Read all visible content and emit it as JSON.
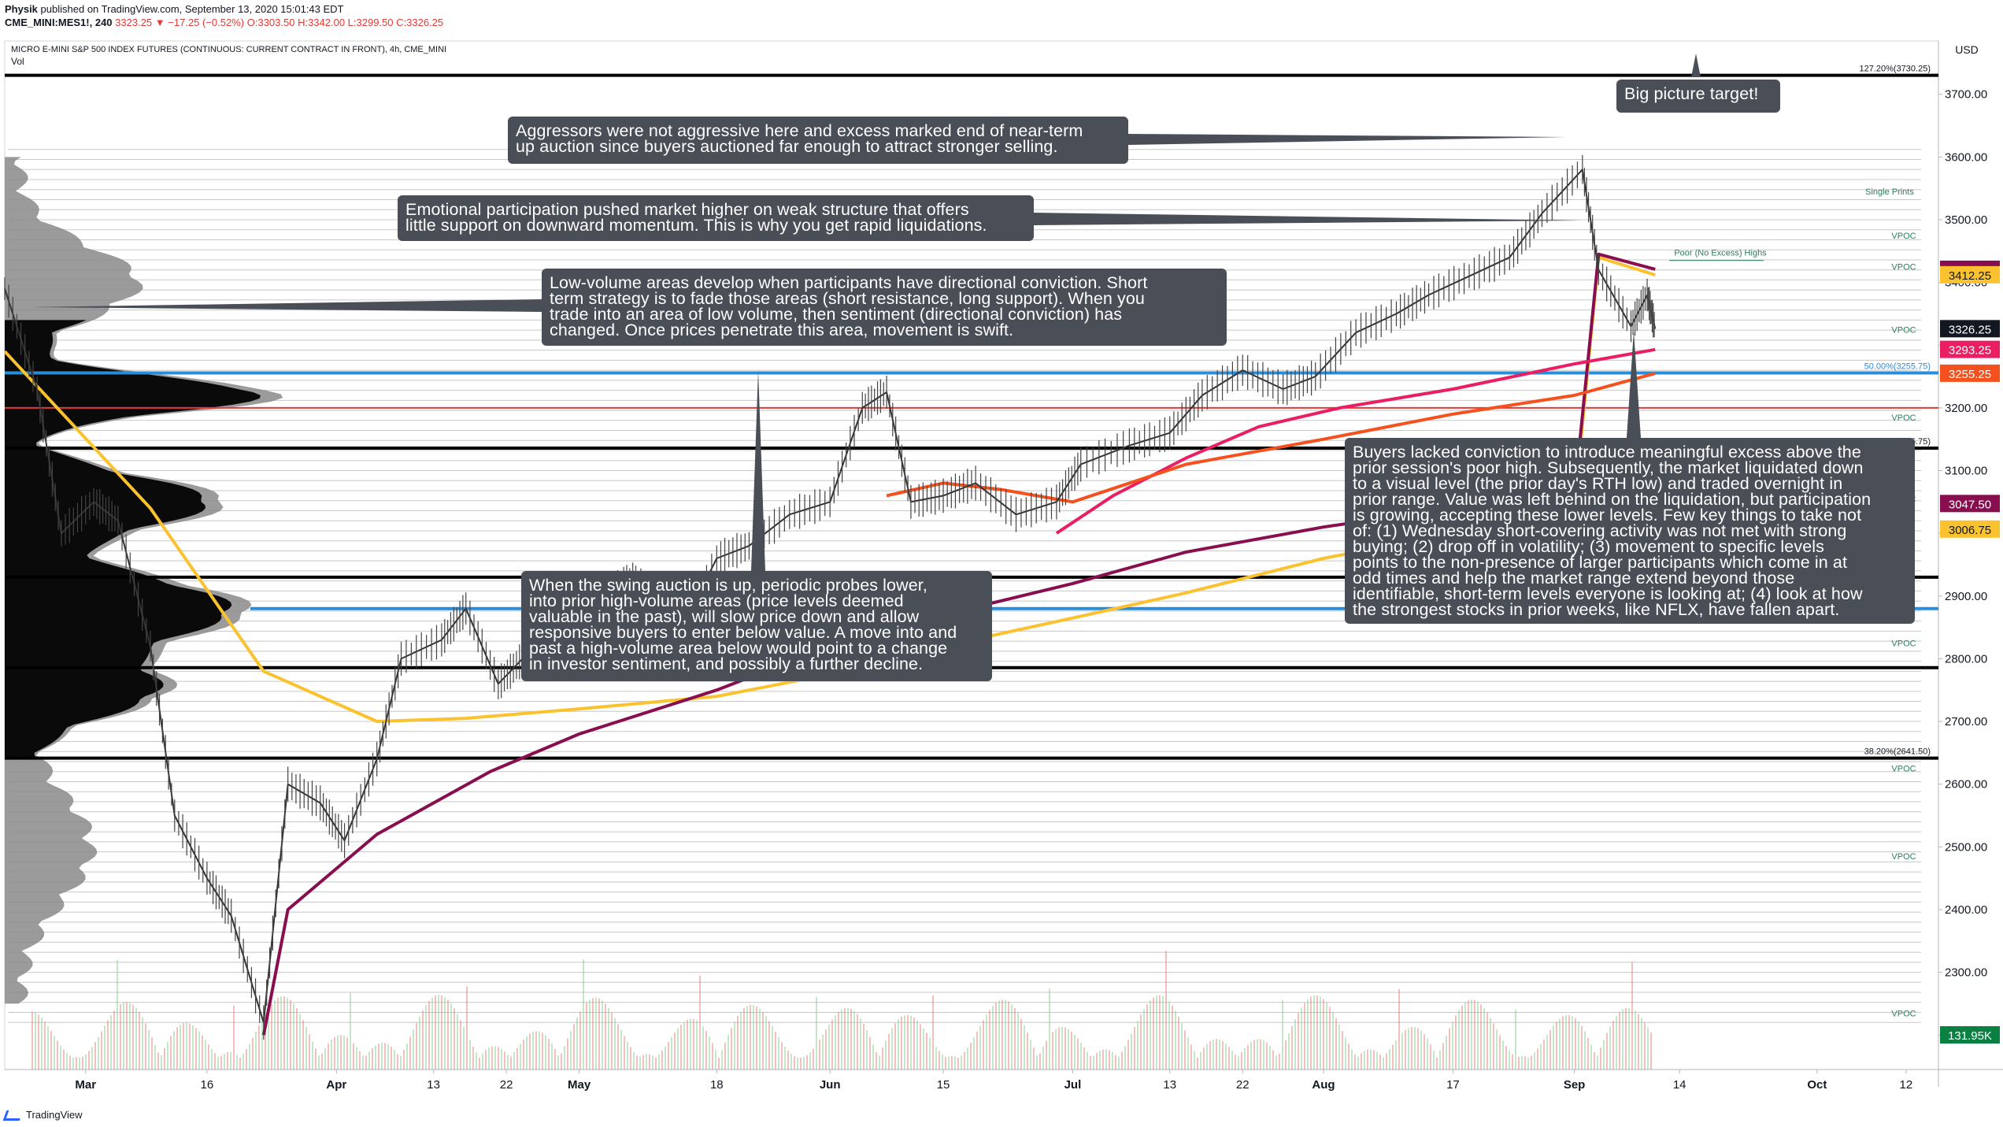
{
  "header": {
    "author": "Physik",
    "published": "published on TradingView.com, September 13, 2020 15:01:43 EDT",
    "symbol": "CME_MINI:MES1!, 240",
    "last": "3323.25",
    "change": "▼ −17.25 (−0.52%)",
    "ohlc": "O:3303.50 H:3342.00 L:3299.50 C:3326.25"
  },
  "chart_title": "MICRO E-MINI S&P 500 INDEX FUTURES (CONTINUOUS: CURRENT CONTRACT IN FRONT), 4h, CME_MINI",
  "vol_label": "Vol",
  "currency": "USD",
  "footer": {
    "brand": "TradingView"
  },
  "annotations": {
    "target": "Big picture target!",
    "aggressors": "Aggressors were not aggressive here and excess marked end of near-term\nup auction since buyers auctioned far enough to attract stronger selling.",
    "emotional": "Emotional participation pushed market higher on weak structure that offers\nlittle support on downward momentum. This is why you get rapid liquidations.",
    "lowvolume": "Low-volume areas develop when participants have directional conviction. Short\nterm strategy is to fade those areas (short resistance, long support). When you\ntrade into an area of low volume, then sentiment (directional conviction) has\nchanged. Once prices penetrate this area, movement is swift.",
    "swing": "When the swing auction is up, periodic probes lower,\ninto prior high-volume areas (price levels deemed\nvaluable in the past), will slow price down and allow\nresponsive buyers to enter below value. A move into and\npast a high-volume area below would point to a change\nin investor sentiment, and possibly a further decline.",
    "buyers": "Buyers lacked conviction to introduce meaningful excess above the\nprior session's poor high. Subsequently, the market liquidated down\nto a visual level (the prior day's RTH low) and traded overnight in\nprior range. Value was left behind on the liquidation, but participation\nis growing, accepting these lower levels. Few key things to take not\nof: (1) Wednesday short-covering activity was not met with strong\nbuying; (2) drop off in volatility; (3) movement to specific levels\npoints to the non-presence of larger participants which come in at\nodd times and help the market range extend beyond those\nidentifiable, short-term levels everyone is looking at; (4) look at how\nthe strongest stocks in prior weeks, like NFLX, have fallen apart."
  },
  "chart_data": {
    "type": "line",
    "yaxis": {
      "ticks": [
        2200,
        2300,
        2400,
        2500,
        2600,
        2700,
        2800,
        2900,
        3000,
        3100,
        3200,
        3300,
        3400,
        3500,
        3600,
        3700
      ],
      "tick_labels": [
        "2200.00",
        "2300.00",
        "2400.00",
        "2500.00",
        "2600.00",
        "2700.00",
        "2800.00",
        "2900.00",
        "3000.00",
        "3100.00",
        "3200.00",
        "3300.00",
        "3400.00",
        "3500.00",
        "3600.00",
        "3700.00"
      ],
      "range": [
        2145,
        3775
      ]
    },
    "xaxis": {
      "tick_labels": [
        "Mar",
        "16",
        "Apr",
        "13",
        "22",
        "May",
        "18",
        "Jun",
        "15",
        "Jul",
        "13",
        "22",
        "Aug",
        "17",
        "Sep",
        "14",
        "Oct",
        "12"
      ],
      "tick_dates": [
        "2020-03-01",
        "2020-03-16",
        "2020-04-01",
        "2020-04-13",
        "2020-04-22",
        "2020-05-01",
        "2020-05-18",
        "2020-06-01",
        "2020-06-15",
        "2020-07-01",
        "2020-07-13",
        "2020-07-22",
        "2020-08-01",
        "2020-08-17",
        "2020-09-01",
        "2020-09-14",
        "2020-10-01",
        "2020-10-12"
      ],
      "range": [
        "2020-02-20",
        "2020-10-16"
      ]
    },
    "fib_levels": [
      {
        "label": "127.20%(3730.25)",
        "price": 3730.25
      },
      {
        "label": "78.60%(3135.75)",
        "price": 3135.75
      },
      {
        "label": "50.00%(3255.75)",
        "price": 3255.75
      },
      {
        "label": "38.20%(2641.50)",
        "price": 2641.5
      }
    ],
    "horizontal_lines": [
      {
        "price": 2930,
        "color": "#000000"
      },
      {
        "price": 2785.75,
        "color": "#000000"
      },
      {
        "price": 2880,
        "color": "#2b8cd8"
      },
      {
        "price": 3200,
        "color": "#e53935"
      }
    ],
    "price_labels": [
      {
        "value": "3421.00",
        "price": 3421.0,
        "color": "#880e4f"
      },
      {
        "value": "3412.25",
        "price": 3412.25,
        "color": "#f9c22e"
      },
      {
        "value": "3326.25",
        "price": 3326.25,
        "color": "#131722"
      },
      {
        "value": "3293.25",
        "price": 3293.25,
        "color": "#e91e63"
      },
      {
        "value": "3255.25",
        "price": 3255.25,
        "color": "#f4511e"
      },
      {
        "value": "3047.50",
        "price": 3047.5,
        "color": "#880e4f"
      },
      {
        "value": "3006.75",
        "price": 3006.75,
        "color": "#f9c22e"
      },
      {
        "value": "131.95K",
        "price": null,
        "color": "#0b8043"
      }
    ],
    "level_labels": [
      "Single Prints",
      "Poor (No Excess) Highs",
      "VPOC"
    ],
    "price_series": {
      "name": "",
      "dates": [
        "2020-02-20",
        "2020-02-24",
        "2020-02-27",
        "2020-03-02",
        "2020-03-05",
        "2020-03-09",
        "2020-03-12",
        "2020-03-16",
        "2020-03-19",
        "2020-03-23",
        "2020-03-26",
        "2020-03-30",
        "2020-04-02",
        "2020-04-06",
        "2020-04-09",
        "2020-04-14",
        "2020-04-17",
        "2020-04-21",
        "2020-04-24",
        "2020-04-29",
        "2020-05-01",
        "2020-05-05",
        "2020-05-08",
        "2020-05-13",
        "2020-05-18",
        "2020-05-22",
        "2020-05-27",
        "2020-06-01",
        "2020-06-05",
        "2020-06-08",
        "2020-06-11",
        "2020-06-15",
        "2020-06-19",
        "2020-06-24",
        "2020-06-29",
        "2020-07-02",
        "2020-07-08",
        "2020-07-13",
        "2020-07-17",
        "2020-07-22",
        "2020-07-27",
        "2020-07-31",
        "2020-08-05",
        "2020-08-10",
        "2020-08-14",
        "2020-08-19",
        "2020-08-24",
        "2020-08-28",
        "2020-09-02",
        "2020-09-04",
        "2020-09-08",
        "2020-09-10",
        "2020-09-11"
      ],
      "close": [
        3390,
        3230,
        3000,
        3050,
        3020,
        2820,
        2550,
        2450,
        2390,
        2220,
        2600,
        2570,
        2510,
        2640,
        2800,
        2830,
        2880,
        2760,
        2800,
        2900,
        2850,
        2910,
        2930,
        2830,
        2960,
        2980,
        3030,
        3050,
        3200,
        3225,
        3050,
        3060,
        3080,
        3030,
        3050,
        3110,
        3140,
        3160,
        3220,
        3260,
        3230,
        3250,
        3320,
        3350,
        3380,
        3410,
        3440,
        3510,
        3580,
        3420,
        3330,
        3380,
        3326
      ]
    },
    "indicator_series": [
      {
        "name": "",
        "color": "#f9c22e",
        "dates": [
          "2020-02-20",
          "2020-03-09",
          "2020-03-23",
          "2020-04-06",
          "2020-04-17",
          "2020-05-01",
          "2020-05-18",
          "2020-06-01",
          "2020-06-15",
          "2020-07-01",
          "2020-07-15",
          "2020-08-01",
          "2020-08-17",
          "2020-09-01",
          "2020-09-04",
          "2020-09-11"
        ],
        "values": [
          3290,
          3040,
          2780,
          2700,
          2705,
          2720,
          2740,
          2775,
          2820,
          2865,
          2905,
          2960,
          3000,
          3040,
          3440,
          3412
        ]
      },
      {
        "name": "",
        "color": "#880e4f",
        "dates": [
          "2020-03-23",
          "2020-03-26",
          "2020-04-06",
          "2020-04-20",
          "2020-05-01",
          "2020-05-18",
          "2020-06-01",
          "2020-06-15",
          "2020-07-01",
          "2020-07-15",
          "2020-08-01",
          "2020-08-17",
          "2020-09-01",
          "2020-09-04",
          "2020-09-11"
        ],
        "values": [
          2200,
          2400,
          2520,
          2620,
          2680,
          2750,
          2820,
          2870,
          2920,
          2970,
          3010,
          3040,
          3060,
          3445,
          3421
        ]
      },
      {
        "name": "",
        "color": "#e91e63",
        "dates": [
          "2020-06-29",
          "2020-07-06",
          "2020-07-15",
          "2020-07-24",
          "2020-08-03",
          "2020-08-17",
          "2020-09-01",
          "2020-09-11"
        ],
        "values": [
          3000,
          3060,
          3120,
          3170,
          3200,
          3230,
          3270,
          3293
        ]
      },
      {
        "name": "",
        "color": "#f4511e",
        "dates": [
          "2020-06-08",
          "2020-06-15",
          "2020-06-22",
          "2020-07-01",
          "2020-07-15",
          "2020-08-01",
          "2020-08-17",
          "2020-09-01",
          "2020-09-11"
        ],
        "values": [
          3060,
          3080,
          3070,
          3050,
          3110,
          3150,
          3190,
          3220,
          3255
        ]
      }
    ]
  }
}
